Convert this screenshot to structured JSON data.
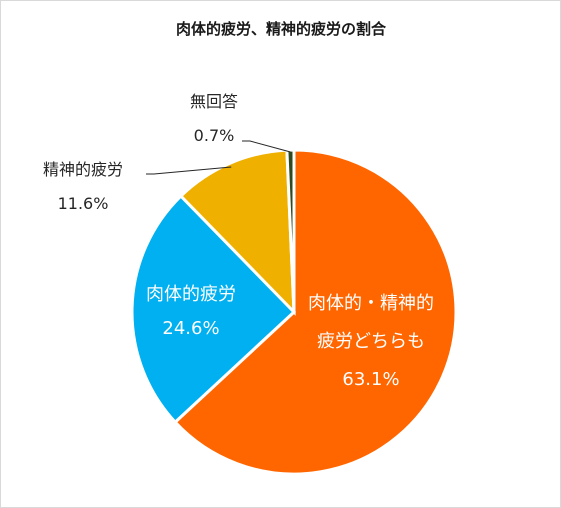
{
  "chart_data": {
    "type": "pie",
    "title": "肉体的疲労、精神的疲労の割合",
    "categories": [
      "肉体的・精神的疲労どちらも",
      "肉体的疲労",
      "精神的疲労",
      "無回答"
    ],
    "values": [
      63.1,
      24.6,
      11.6,
      0.7
    ],
    "value_labels": [
      "63.1%",
      "24.6%",
      "11.6%",
      "0.7%"
    ],
    "label_lines": [
      [
        "肉体的・精神的",
        "疲労どちらも"
      ],
      [
        "肉体的疲労"
      ],
      [
        "精神的疲労"
      ],
      [
        "無回答"
      ]
    ],
    "colors": [
      "#FF6600",
      "#00B0F0",
      "#F0B000",
      "#2E4A1E"
    ],
    "start": "12 o'clock",
    "direction": "clockwise",
    "legend": "none"
  }
}
